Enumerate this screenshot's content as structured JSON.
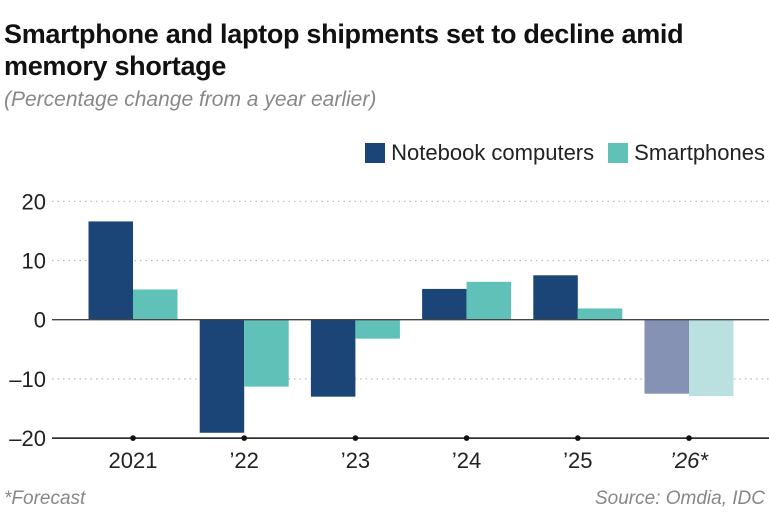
{
  "chart_data": {
    "type": "bar",
    "title": "Smartphone and laptop shipments set to decline amid memory shortage",
    "subtitle": "(Percentage change from a year earlier)",
    "categories": [
      "2021",
      "’22",
      "’23",
      "’24",
      "’25",
      "’26*"
    ],
    "forecast_categories": [
      "’26*"
    ],
    "series": [
      {
        "name": "Notebook computers",
        "color": "#1b4577",
        "forecast_color": "#8592b4",
        "values": [
          16.6,
          -19.1,
          -13.0,
          5.2,
          7.5,
          -12.5
        ]
      },
      {
        "name": "Smartphones",
        "color": "#5fc1b8",
        "forecast_color": "#bae1df",
        "values": [
          5.1,
          -11.3,
          -3.2,
          6.4,
          1.9,
          -12.9
        ]
      }
    ],
    "yticks": [
      "20",
      "10",
      "0",
      "–10",
      "–20"
    ],
    "ytick_values": [
      20,
      10,
      0,
      -10,
      -20
    ],
    "ylim": [
      -20,
      20
    ],
    "grid": true,
    "legend": "top-right",
    "footnote": "*Forecast",
    "source": "Source: Omdia, IDC"
  }
}
